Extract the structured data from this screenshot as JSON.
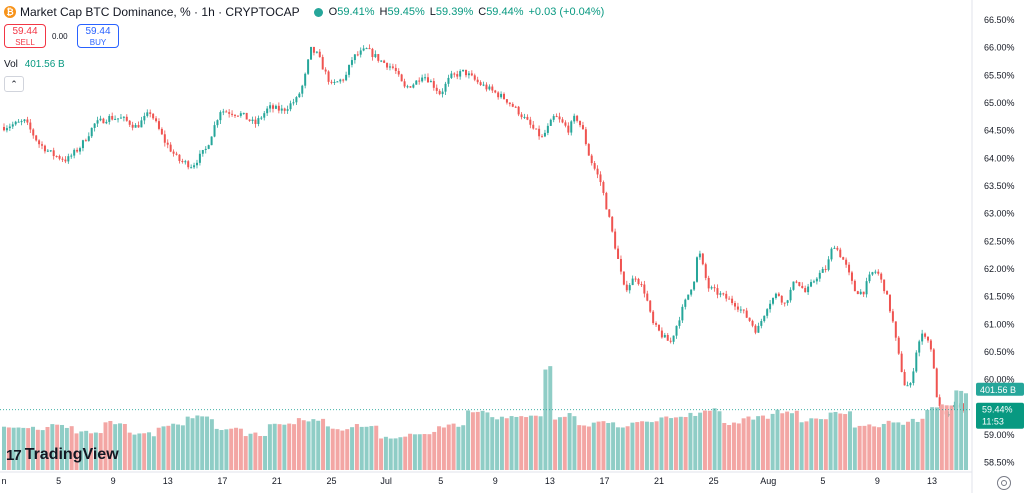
{
  "header": {
    "title": "Market Cap BTC Dominance, % · 1h · CRYPTOCAP",
    "coin_symbol": "₿",
    "open_label": "O",
    "open": "59.41%",
    "high_label": "H",
    "high": "59.45%",
    "low_label": "L",
    "low": "59.39%",
    "close_label": "C",
    "close": "59.44%",
    "change": "+0.03 (+0.04%)"
  },
  "trade": {
    "sell_price": "59.44",
    "sell_label": "SELL",
    "spread": "0.00",
    "buy_price": "59.44",
    "buy_label": "BUY"
  },
  "volume_legend": {
    "label": "Vol",
    "value": "401.56 B"
  },
  "collapse_icon": "chevron-up-icon",
  "badges": {
    "volume": "401.56 B",
    "price": "59.44%",
    "countdown": "11:53"
  },
  "branding": {
    "logo_mark": "17",
    "name": "TradingView"
  },
  "colors": {
    "up": "#26a69a",
    "down": "#ef5350",
    "vol_up": "#8fcdc6",
    "vol_down": "#f3a6a4",
    "vol_badge": "#26a69a",
    "price_badge": "#089981"
  },
  "chart_data": {
    "type": "candlestick",
    "series_name": "Market Cap BTC Dominance, %",
    "interval": "1h",
    "y_axis": {
      "side": "right",
      "ticks": [
        "66.50%",
        "66.00%",
        "65.50%",
        "65.00%",
        "64.50%",
        "64.00%",
        "63.50%",
        "63.00%",
        "62.50%",
        "62.00%",
        "61.50%",
        "61.00%",
        "60.50%",
        "60.00%",
        "59.50%",
        "59.00%",
        "58.50%"
      ],
      "ylim": [
        58.35,
        66.7
      ]
    },
    "x_axis": {
      "ticks": [
        "n",
        "5",
        "9",
        "13",
        "17",
        "21",
        "25",
        "Jul",
        "5",
        "9",
        "13",
        "17",
        "21",
        "25",
        "Aug",
        "5",
        "9",
        "13"
      ]
    },
    "price_path": [
      {
        "x": 0.0,
        "y": 64.55
      },
      {
        "x": 1.5,
        "y": 64.65
      },
      {
        "x": 2.5,
        "y": 64.25
      },
      {
        "x": 3.5,
        "y": 64.05
      },
      {
        "x": 4.5,
        "y": 63.95
      },
      {
        "x": 5.5,
        "y": 64.2
      },
      {
        "x": 6.5,
        "y": 64.6
      },
      {
        "x": 7.5,
        "y": 64.72
      },
      {
        "x": 8.5,
        "y": 64.7
      },
      {
        "x": 9.5,
        "y": 64.55
      },
      {
        "x": 10.5,
        "y": 64.82
      },
      {
        "x": 11.5,
        "y": 64.3
      },
      {
        "x": 12.5,
        "y": 63.95
      },
      {
        "x": 13.5,
        "y": 63.85
      },
      {
        "x": 14.5,
        "y": 64.15
      },
      {
        "x": 15.5,
        "y": 64.85
      },
      {
        "x": 17.0,
        "y": 64.78
      },
      {
        "x": 18.0,
        "y": 64.6
      },
      {
        "x": 19.0,
        "y": 64.9
      },
      {
        "x": 20.0,
        "y": 64.85
      },
      {
        "x": 21.0,
        "y": 65.05
      },
      {
        "x": 21.5,
        "y": 65.35
      },
      {
        "x": 22.0,
        "y": 65.95
      },
      {
        "x": 22.5,
        "y": 65.85
      },
      {
        "x": 23.0,
        "y": 65.55
      },
      {
        "x": 23.5,
        "y": 65.3
      },
      {
        "x": 24.5,
        "y": 65.45
      },
      {
        "x": 25.0,
        "y": 65.8
      },
      {
        "x": 26.0,
        "y": 65.95
      },
      {
        "x": 27.0,
        "y": 65.75
      },
      {
        "x": 28.0,
        "y": 65.6
      },
      {
        "x": 28.7,
        "y": 65.25
      },
      {
        "x": 29.5,
        "y": 65.35
      },
      {
        "x": 30.0,
        "y": 65.5
      },
      {
        "x": 30.5,
        "y": 65.4
      },
      {
        "x": 31.3,
        "y": 65.15
      },
      {
        "x": 32.0,
        "y": 65.45
      },
      {
        "x": 33.0,
        "y": 65.55
      },
      {
        "x": 34.0,
        "y": 65.35
      },
      {
        "x": 35.0,
        "y": 65.2
      },
      {
        "x": 36.0,
        "y": 65.05
      },
      {
        "x": 37.0,
        "y": 64.8
      },
      {
        "x": 38.0,
        "y": 64.5
      },
      {
        "x": 38.6,
        "y": 64.35
      },
      {
        "x": 39.5,
        "y": 64.75
      },
      {
        "x": 40.5,
        "y": 64.5
      },
      {
        "x": 41.0,
        "y": 64.75
      },
      {
        "x": 41.5,
        "y": 64.5
      },
      {
        "x": 42.0,
        "y": 64.0
      },
      {
        "x": 42.8,
        "y": 63.55
      },
      {
        "x": 43.4,
        "y": 62.9
      },
      {
        "x": 44.0,
        "y": 62.2
      },
      {
        "x": 44.5,
        "y": 61.6
      },
      {
        "x": 45.3,
        "y": 61.85
      },
      {
        "x": 46.0,
        "y": 61.55
      },
      {
        "x": 46.5,
        "y": 61.0
      },
      {
        "x": 47.3,
        "y": 60.75
      },
      {
        "x": 47.8,
        "y": 60.65
      },
      {
        "x": 48.5,
        "y": 61.15
      },
      {
        "x": 49.5,
        "y": 61.8
      },
      {
        "x": 49.8,
        "y": 62.35
      },
      {
        "x": 50.5,
        "y": 61.65
      },
      {
        "x": 51.5,
        "y": 61.5
      },
      {
        "x": 52.5,
        "y": 61.35
      },
      {
        "x": 53.5,
        "y": 61.05
      },
      {
        "x": 54.0,
        "y": 60.85
      },
      {
        "x": 54.8,
        "y": 61.35
      },
      {
        "x": 55.5,
        "y": 61.55
      },
      {
        "x": 56.0,
        "y": 61.35
      },
      {
        "x": 56.8,
        "y": 61.8
      },
      {
        "x": 57.5,
        "y": 61.55
      },
      {
        "x": 58.3,
        "y": 61.85
      },
      {
        "x": 59.0,
        "y": 62.0
      },
      {
        "x": 59.5,
        "y": 62.45
      },
      {
        "x": 60.3,
        "y": 62.1
      },
      {
        "x": 61.0,
        "y": 61.6
      },
      {
        "x": 61.6,
        "y": 61.55
      },
      {
        "x": 62.2,
        "y": 61.9
      },
      {
        "x": 62.6,
        "y": 61.95
      },
      {
        "x": 63.2,
        "y": 61.6
      },
      {
        "x": 63.7,
        "y": 61.1
      },
      {
        "x": 64.1,
        "y": 60.5
      },
      {
        "x": 64.6,
        "y": 59.9
      },
      {
        "x": 65.0,
        "y": 59.85
      },
      {
        "x": 65.5,
        "y": 60.6
      },
      {
        "x": 66.0,
        "y": 60.85
      },
      {
        "x": 66.5,
        "y": 60.55
      },
      {
        "x": 67.0,
        "y": 59.5
      },
      {
        "x": 67.5,
        "y": 59.3
      },
      {
        "x": 68.0,
        "y": 59.45
      },
      {
        "x": 68.5,
        "y": 59.55
      },
      {
        "x": 69.0,
        "y": 59.4
      }
    ],
    "x_span": [
      0.0,
      69.0
    ],
    "volume_panel": {
      "bottom_price": 58.35,
      "top_price": 60.55,
      "bars_estimate": [
        [
          0,
          59.1
        ],
        [
          3,
          59.15
        ],
        [
          5,
          59.05
        ],
        [
          7,
          59.2
        ],
        [
          9,
          59.0
        ],
        [
          11,
          59.15
        ],
        [
          13,
          59.3
        ],
        [
          15,
          59.1
        ],
        [
          17,
          59.0
        ],
        [
          19,
          59.15
        ],
        [
          21,
          59.25
        ],
        [
          23,
          59.1
        ],
        [
          25,
          59.15
        ],
        [
          27,
          58.95
        ],
        [
          29,
          59.0
        ],
        [
          31,
          59.15
        ],
        [
          33,
          59.4
        ],
        [
          35,
          59.3
        ],
        [
          37,
          59.3
        ],
        [
          38.5,
          60.2
        ],
        [
          39.2,
          59.3
        ],
        [
          40,
          59.35
        ],
        [
          41,
          59.15
        ],
        [
          42,
          59.2
        ],
        [
          44,
          59.15
        ],
        [
          45,
          59.2
        ],
        [
          47,
          59.3
        ],
        [
          49,
          59.35
        ],
        [
          50,
          59.45
        ],
        [
          51.5,
          59.2
        ],
        [
          53,
          59.3
        ],
        [
          55,
          59.4
        ],
        [
          57,
          59.25
        ],
        [
          59,
          59.4
        ],
        [
          61,
          59.15
        ],
        [
          63,
          59.2
        ],
        [
          65,
          59.25
        ],
        [
          66,
          59.45
        ],
        [
          67,
          59.55
        ],
        [
          68,
          59.75
        ],
        [
          69,
          59.4
        ]
      ]
    },
    "last_value": 59.44,
    "last_volume": "401.56 B",
    "legend_position": "top-left"
  }
}
